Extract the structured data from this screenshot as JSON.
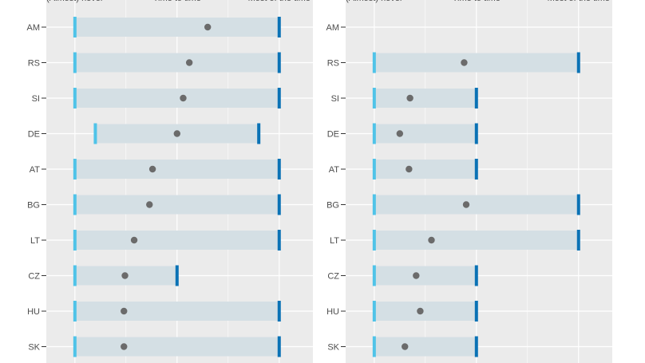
{
  "chart_data": [
    {
      "type": "dot-range",
      "panel": "left",
      "x_tick_labels": [
        "(Almost) never",
        "Time to time",
        "Most of the time"
      ],
      "categories": [
        "AM",
        "RS",
        "SI",
        "DE",
        "AT",
        "BG",
        "LT",
        "CZ",
        "HU",
        "SK"
      ],
      "rows": [
        {
          "category": "AM",
          "min": 1,
          "max": 3,
          "value": 2.3
        },
        {
          "category": "RS",
          "min": 1,
          "max": 3,
          "value": 2.12
        },
        {
          "category": "SI",
          "min": 1,
          "max": 3,
          "value": 2.06
        },
        {
          "category": "DE",
          "min": 1.2,
          "max": 2.8,
          "value": 2.0
        },
        {
          "category": "AT",
          "min": 1,
          "max": 3,
          "value": 1.76
        },
        {
          "category": "BG",
          "min": 1,
          "max": 3,
          "value": 1.73
        },
        {
          "category": "LT",
          "min": 1,
          "max": 3,
          "value": 1.58
        },
        {
          "category": "CZ",
          "min": 1,
          "max": 2,
          "value": 1.49
        },
        {
          "category": "HU",
          "min": 1,
          "max": 3,
          "value": 1.48
        },
        {
          "category": "SK",
          "min": 1,
          "max": 3,
          "value": 1.48
        }
      ],
      "xlim": [
        0.72,
        3.33
      ]
    },
    {
      "type": "dot-range",
      "panel": "right",
      "x_tick_labels": [
        "(Almost) never",
        "Time to time",
        "Most of the time"
      ],
      "categories": [
        "AM",
        "RS",
        "SI",
        "DE",
        "AT",
        "BG",
        "LT",
        "CZ",
        "HU",
        "SK"
      ],
      "rows": [
        {
          "category": "AM",
          "min": null,
          "max": null,
          "value": null
        },
        {
          "category": "RS",
          "min": 1,
          "max": 3,
          "value": 1.88
        },
        {
          "category": "SI",
          "min": 1,
          "max": 2,
          "value": 1.35
        },
        {
          "category": "DE",
          "min": 1,
          "max": 2,
          "value": 1.25
        },
        {
          "category": "AT",
          "min": 1,
          "max": 2,
          "value": 1.34
        },
        {
          "category": "BG",
          "min": 1,
          "max": 3,
          "value": 1.9
        },
        {
          "category": "LT",
          "min": 1,
          "max": 3,
          "value": 1.56
        },
        {
          "category": "CZ",
          "min": 1,
          "max": 2,
          "value": 1.41
        },
        {
          "category": "HU",
          "min": 1,
          "max": 2,
          "value": 1.45
        },
        {
          "category": "SK",
          "min": 1,
          "max": 2,
          "value": 1.3
        }
      ],
      "xlim": [
        0.72,
        3.33
      ]
    }
  ],
  "colors": {
    "panel_bg": "#ebebeb",
    "grid": "#ffffff",
    "range_fill": "#d4dfe4",
    "min_cap": "#4fc3e8",
    "max_cap": "#0a72b5",
    "point": "#6b6b6b",
    "text": "#4d4d4d",
    "tick": "#333333"
  }
}
